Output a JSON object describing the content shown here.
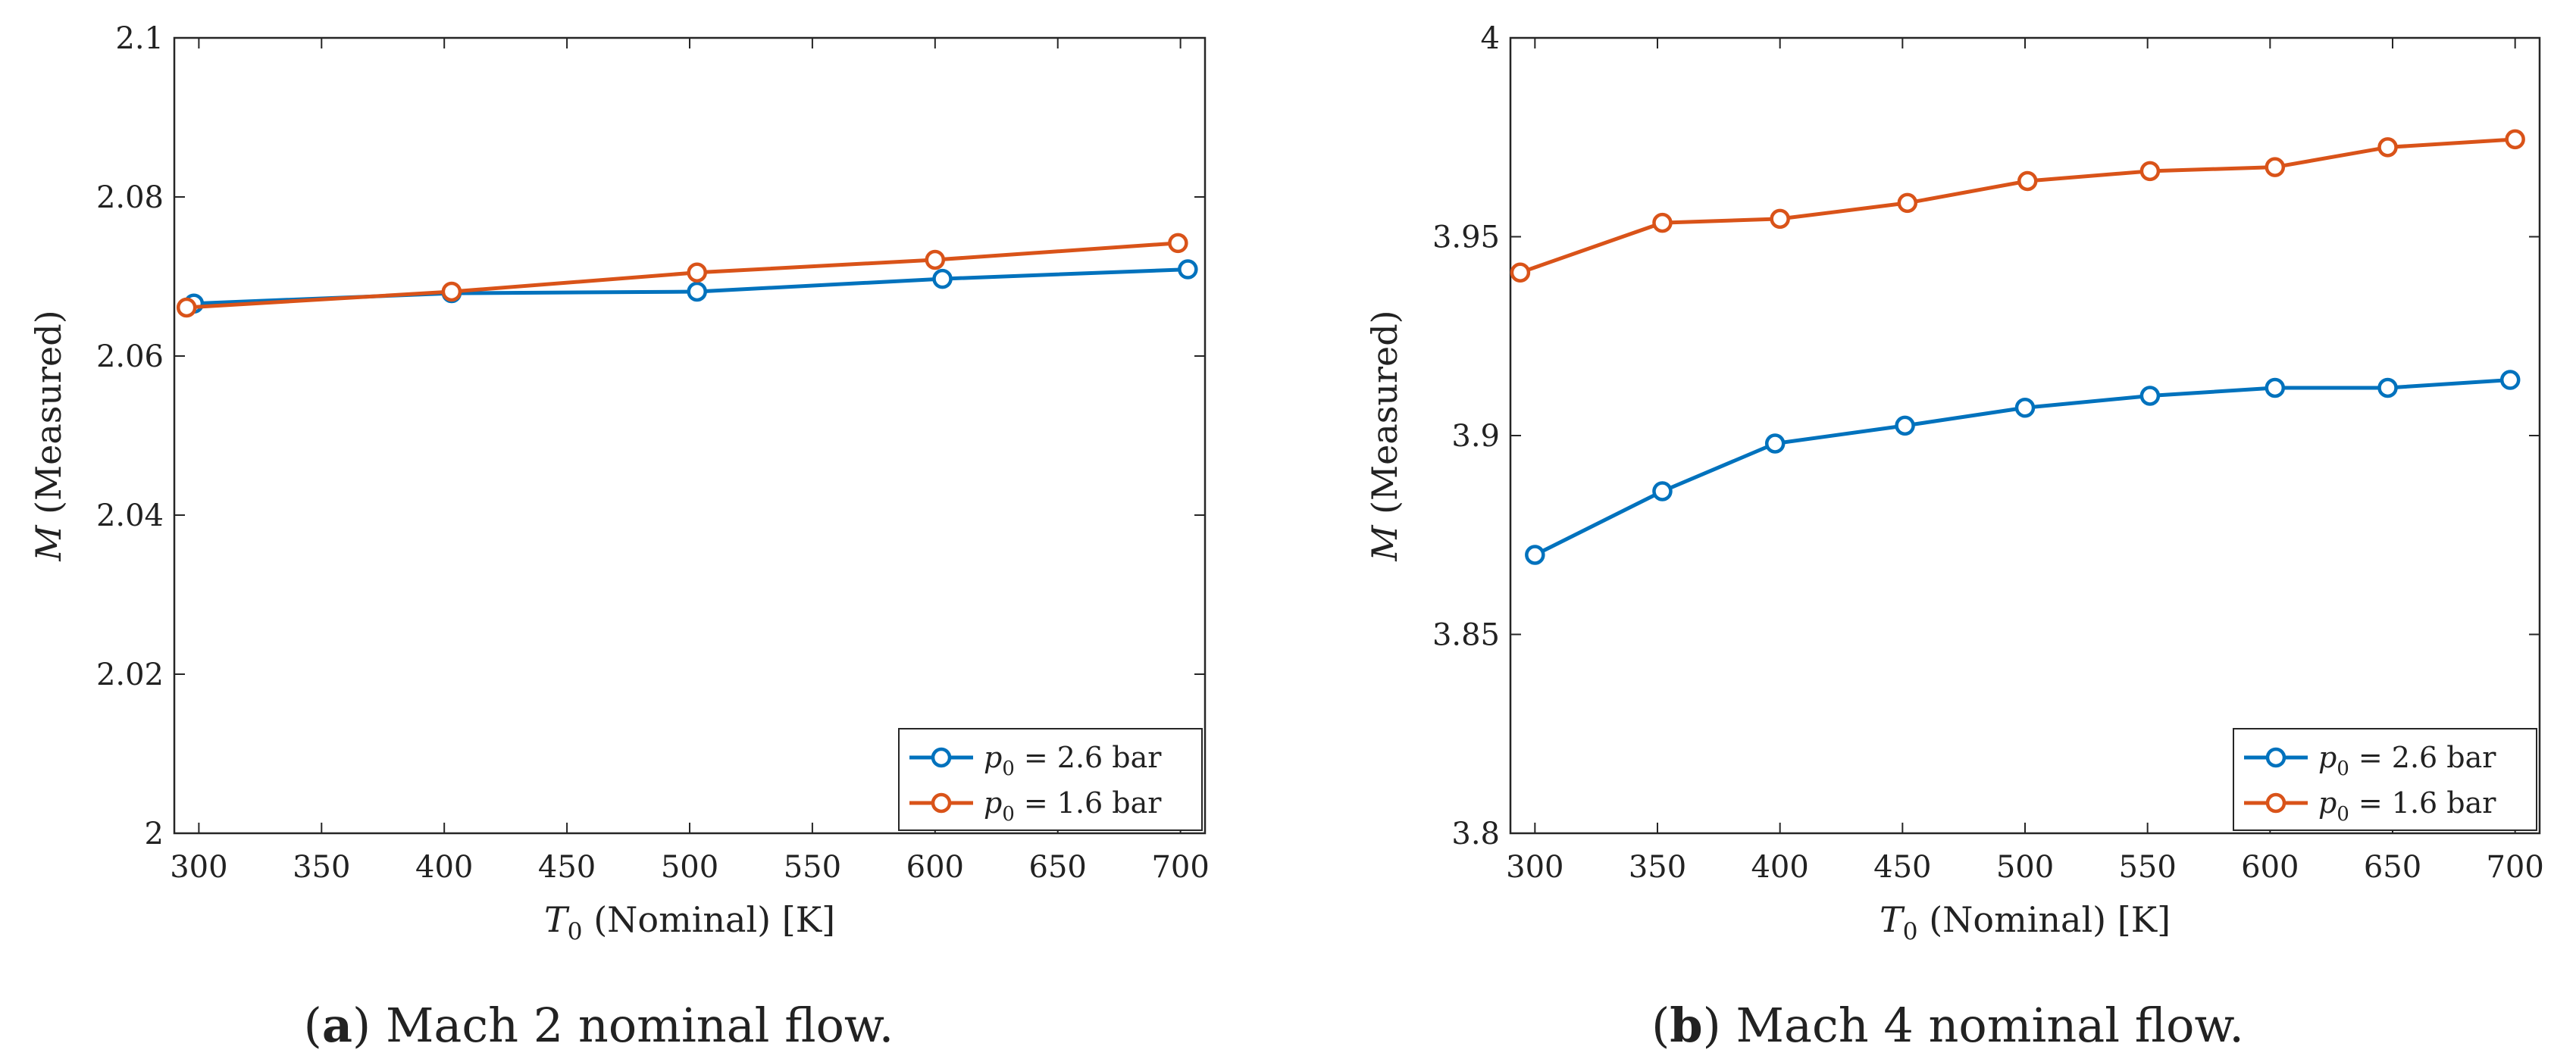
{
  "chart_data": [
    {
      "id": "a",
      "type": "line",
      "caption_letter": "a",
      "caption_text": "Mach 2 nominal flow.",
      "xlabel": "T0 (Nominal) [K]",
      "ylabel": "M (Measured)",
      "xlim": [
        290,
        710
      ],
      "ylim": [
        2.0,
        2.1
      ],
      "xticks": [
        300,
        350,
        400,
        450,
        500,
        550,
        600,
        650,
        700
      ],
      "yticks": [
        2.0,
        2.02,
        2.04,
        2.06,
        2.08,
        2.1
      ],
      "ytick_labels": [
        "2",
        "2.02",
        "2.04",
        "2.06",
        "2.08",
        "2.1"
      ],
      "legend_position": "bottom-right",
      "series": [
        {
          "name": "p0 = 2.6 bar",
          "color": "#0072BD",
          "x": [
            298,
            403,
            503,
            603,
            703
          ],
          "y": [
            2.0666,
            2.0679,
            2.0681,
            2.0697,
            2.0709
          ]
        },
        {
          "name": "p0 = 1.6 bar",
          "color": "#D95319",
          "x": [
            295,
            403,
            503,
            600,
            699
          ],
          "y": [
            2.0661,
            2.0681,
            2.0705,
            2.0721,
            2.0742
          ]
        }
      ]
    },
    {
      "id": "b",
      "type": "line",
      "caption_letter": "b",
      "caption_text": "Mach 4 nominal flow.",
      "xlabel": "T0 (Nominal) [K]",
      "ylabel": "M (Measured)",
      "xlim": [
        290,
        710
      ],
      "ylim": [
        3.8,
        4.0
      ],
      "xticks": [
        300,
        350,
        400,
        450,
        500,
        550,
        600,
        650,
        700
      ],
      "yticks": [
        3.8,
        3.85,
        3.9,
        3.95,
        4.0
      ],
      "ytick_labels": [
        "3.8",
        "3.85",
        "3.9",
        "3.95",
        "4"
      ],
      "legend_position": "bottom-right",
      "series": [
        {
          "name": "p0 = 2.6 bar",
          "color": "#0072BD",
          "x": [
            300,
            352,
            398,
            451,
            500,
            551,
            602,
            648,
            698
          ],
          "y": [
            3.87,
            3.886,
            3.898,
            3.9025,
            3.907,
            3.91,
            3.912,
            3.912,
            3.914
          ]
        },
        {
          "name": "p0 = 1.6 bar",
          "color": "#D95319",
          "x": [
            294,
            352,
            400,
            452,
            501,
            551,
            602,
            648,
            700
          ],
          "y": [
            3.941,
            3.9535,
            3.9545,
            3.9585,
            3.964,
            3.9665,
            3.9675,
            3.9725,
            3.9745
          ]
        }
      ]
    }
  ]
}
